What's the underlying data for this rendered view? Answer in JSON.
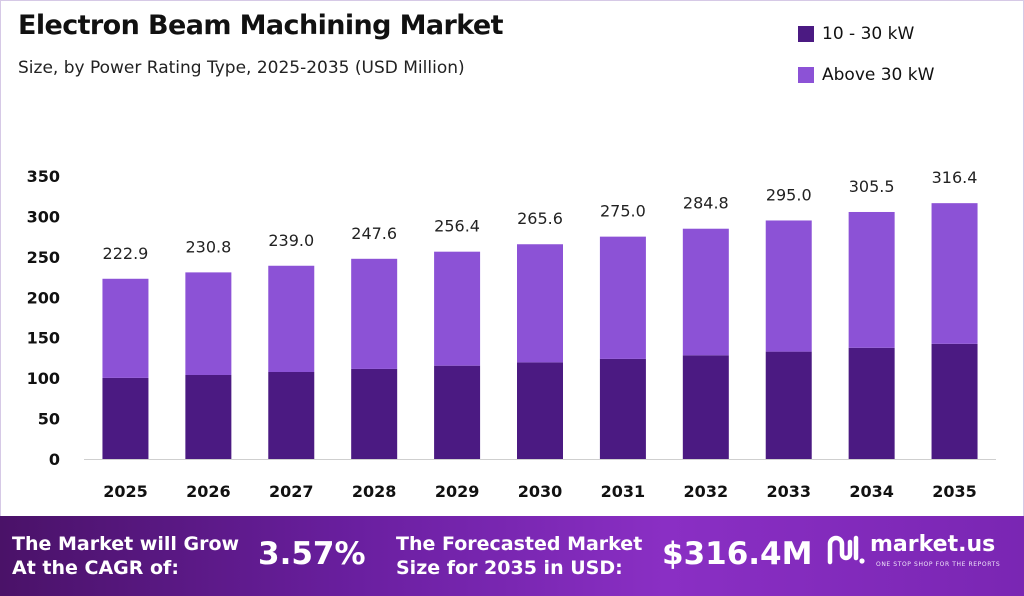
{
  "header": {
    "title": "Electron Beam Machining Market",
    "subtitle": "Size, by Power Rating Type, 2025-2035 (USD Million)"
  },
  "legend": [
    {
      "label": "10 - 30 kW",
      "color": "#4b1a82"
    },
    {
      "label": "Above 30 kW",
      "color": "#8c52d6"
    }
  ],
  "chart_data": {
    "type": "bar",
    "stacked": true,
    "categories": [
      "2025",
      "2026",
      "2027",
      "2028",
      "2029",
      "2030",
      "2031",
      "2032",
      "2033",
      "2034",
      "2035"
    ],
    "series": [
      {
        "name": "10 - 30 kW",
        "color": "#4b1a82",
        "values": [
          100.3,
          103.9,
          107.6,
          111.4,
          115.4,
          119.5,
          123.8,
          128.2,
          132.8,
          137.5,
          142.4
        ]
      },
      {
        "name": "Above 30 kW",
        "color": "#8c52d6",
        "values": [
          122.6,
          126.9,
          131.4,
          136.2,
          141.0,
          146.1,
          151.2,
          156.6,
          162.2,
          168.0,
          174.0
        ]
      }
    ],
    "totals": [
      "222.9",
      "230.8",
      "239.0",
      "247.6",
      "256.4",
      "265.6",
      "275.0",
      "284.8",
      "295.0",
      "305.5",
      "316.4"
    ],
    "ylim": [
      0,
      350
    ],
    "yticks": [
      "0",
      "50",
      "100",
      "150",
      "200",
      "250",
      "300",
      "350"
    ],
    "grid": false,
    "legend_position": "top-right"
  },
  "banner": {
    "cagr_label_line1": "The Market will Grow",
    "cagr_label_line2": "At the CAGR of:",
    "cagr_value": "3.57%",
    "forecast_label_line1": "The Forecasted Market",
    "forecast_label_line2": "Size for 2035 in USD:",
    "forecast_value": "$316.4M",
    "logo_name": "market.us",
    "logo_tagline": "ONE STOP SHOP FOR THE REPORTS"
  }
}
